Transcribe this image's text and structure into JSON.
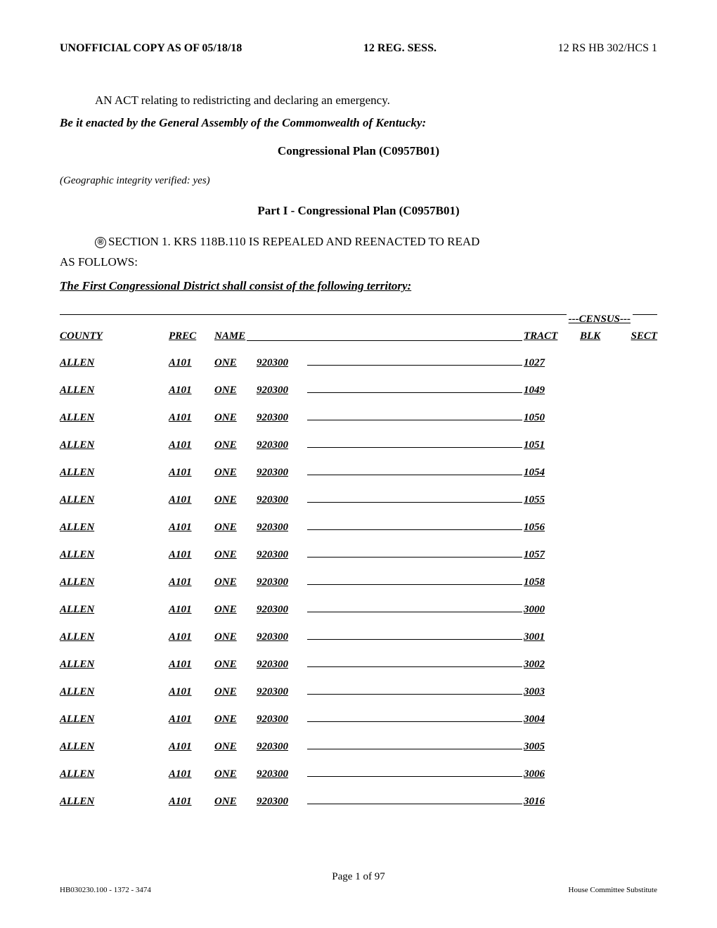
{
  "header": {
    "left": "UNOFFICIAL COPY AS OF  05/18/18",
    "mid": "12 REG. SESS.",
    "right": "12 RS HB 302/HCS 1"
  },
  "act_line": "AN ACT relating to redistricting and declaring an emergency.",
  "enact_line": "Be it enacted by the General Assembly of the Commonwealth of Kentucky:",
  "plan_title": "Congressional Plan (C0957B01)",
  "verified": "(Geographic integrity verified: yes)",
  "part_title": "Part I - Congressional Plan (C0957B01)",
  "section_text": "SECTION 1.   KRS 118B.110 IS REPEALED AND REENACTED TO READ",
  "as_follows": "AS FOLLOWS:",
  "district_line": "The First Congressional District shall consist of the following territory:",
  "census_label": "---CENSUS---",
  "columns": {
    "county": "COUNTY",
    "prec": "PREC",
    "name": "NAME",
    "tract": "TRACT",
    "blk": "BLK",
    "sect": "SECT"
  },
  "rows": [
    {
      "county": "ALLEN",
      "prec": "A101",
      "name": "ONE",
      "code": "920300",
      "tract": "1027"
    },
    {
      "county": "ALLEN",
      "prec": "A101",
      "name": "ONE",
      "code": "920300",
      "tract": "1049"
    },
    {
      "county": "ALLEN",
      "prec": "A101",
      "name": "ONE",
      "code": "920300",
      "tract": "1050"
    },
    {
      "county": "ALLEN",
      "prec": "A101",
      "name": "ONE",
      "code": "920300",
      "tract": "1051"
    },
    {
      "county": "ALLEN",
      "prec": "A101",
      "name": "ONE",
      "code": "920300",
      "tract": "1054"
    },
    {
      "county": "ALLEN",
      "prec": "A101",
      "name": "ONE",
      "code": "920300",
      "tract": "1055"
    },
    {
      "county": "ALLEN",
      "prec": "A101",
      "name": "ONE",
      "code": "920300",
      "tract": "1056"
    },
    {
      "county": "ALLEN",
      "prec": "A101",
      "name": "ONE",
      "code": "920300",
      "tract": "1057"
    },
    {
      "county": "ALLEN",
      "prec": "A101",
      "name": "ONE",
      "code": "920300",
      "tract": "1058"
    },
    {
      "county": "ALLEN",
      "prec": "A101",
      "name": "ONE",
      "code": "920300",
      "tract": "3000"
    },
    {
      "county": "ALLEN",
      "prec": "A101",
      "name": "ONE",
      "code": "920300",
      "tract": "3001"
    },
    {
      "county": "ALLEN",
      "prec": "A101",
      "name": "ONE",
      "code": "920300",
      "tract": "3002"
    },
    {
      "county": "ALLEN",
      "prec": "A101",
      "name": "ONE",
      "code": "920300",
      "tract": "3003"
    },
    {
      "county": "ALLEN",
      "prec": "A101",
      "name": "ONE",
      "code": "920300",
      "tract": "3004"
    },
    {
      "county": "ALLEN",
      "prec": "A101",
      "name": "ONE",
      "code": "920300",
      "tract": "3005"
    },
    {
      "county": "ALLEN",
      "prec": "A101",
      "name": "ONE",
      "code": "920300",
      "tract": "3006"
    },
    {
      "county": "ALLEN",
      "prec": "A101",
      "name": "ONE",
      "code": "920300",
      "tract": "3016"
    }
  ],
  "footer": {
    "page": "Page 1 of 97",
    "left": "HB030230.100 - 1372 - 3474",
    "right": "House Committee Substitute"
  }
}
